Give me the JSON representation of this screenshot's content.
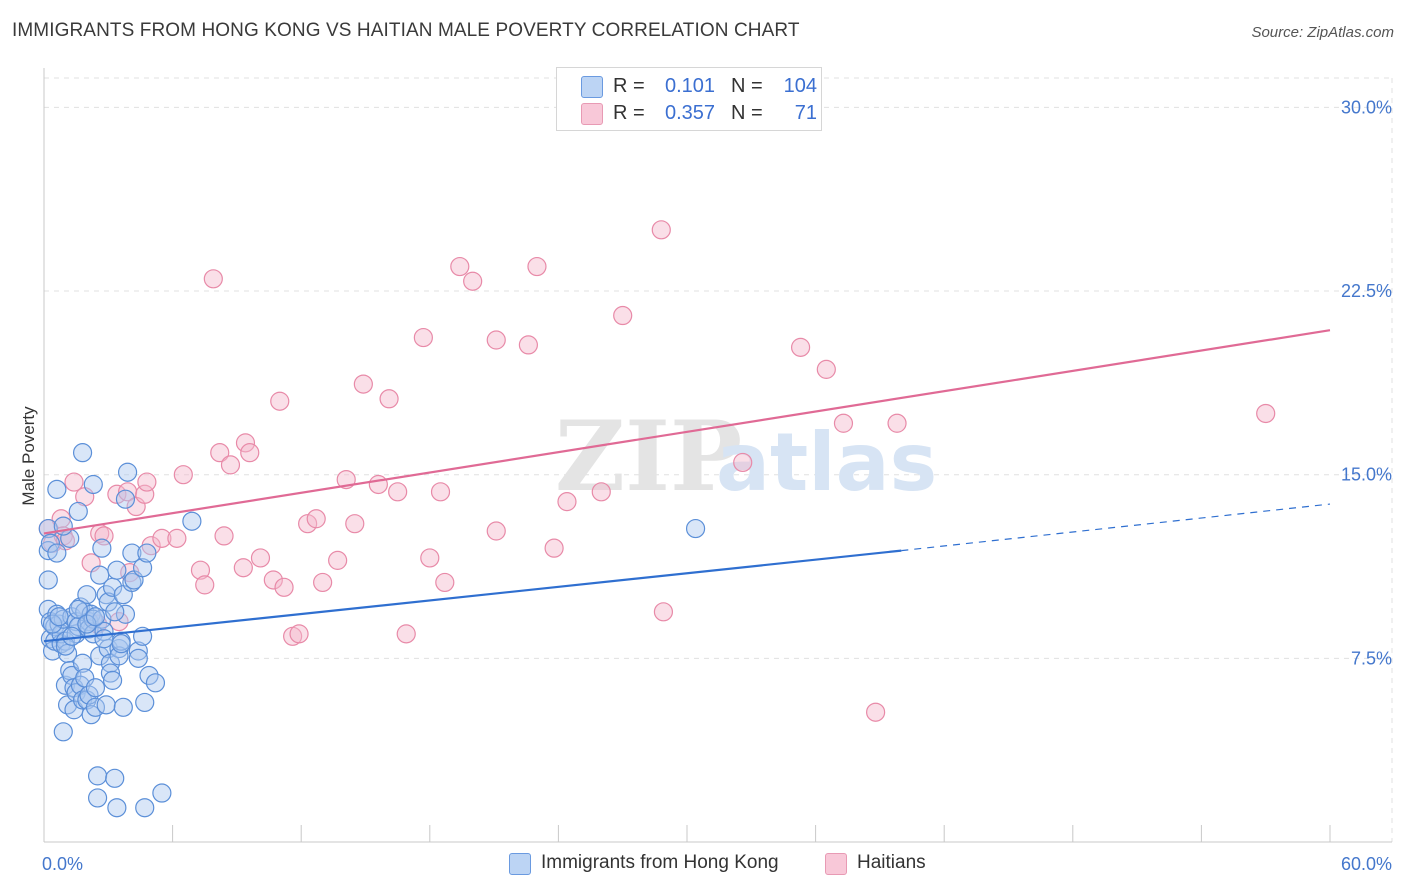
{
  "title": "IMMIGRANTS FROM HONG KONG VS HAITIAN MALE POVERTY CORRELATION CHART",
  "source": "Source: ZipAtlas.com",
  "watermark": {
    "zip": "ZIP",
    "atlas": "atlas"
  },
  "colors": {
    "blue_fill": "#aac8f0",
    "blue_stroke": "#5b8fd8",
    "blue_line": "#2f6fd0",
    "pink_fill": "#f5b8cc",
    "pink_stroke": "#e88aa8",
    "pink_line": "#e06a95",
    "grid": "#e0e0e0",
    "axis_label": "#4477cc"
  },
  "legend": {
    "rows": [
      {
        "r_label": "R =",
        "r_value": "0.101",
        "n_label": "N =",
        "n_value": "104"
      },
      {
        "r_label": "R =",
        "r_value": "0.357",
        "n_label": "N =",
        "n_value": "71"
      }
    ]
  },
  "bottom_legend": {
    "series1": "Immigrants from Hong Kong",
    "series2": "Haitians"
  },
  "chart_data": {
    "type": "scatter",
    "title": "IMMIGRANTS FROM HONG KONG VS HAITIAN MALE POVERTY CORRELATION CHART",
    "xlabel": "",
    "ylabel": "Male Poverty",
    "xlim": [
      0,
      60
    ],
    "ylim": [
      0,
      31.2
    ],
    "x_tick_labels": [
      "0.0%",
      "60.0%"
    ],
    "y_ticks": [
      7.5,
      15.0,
      22.5,
      30.0
    ],
    "y_tick_labels": [
      "7.5%",
      "15.0%",
      "22.5%",
      "30.0%"
    ],
    "grid": true,
    "series": [
      {
        "name": "Immigrants from Hong Kong",
        "R": 0.101,
        "N": 104,
        "trend": {
          "x0": 0,
          "y0": 8.2,
          "x1": 40,
          "y1": 11.9,
          "dashed_to_x": 60,
          "dashed_to_y": 13.8
        },
        "points": [
          [
            0.2,
            12.8
          ],
          [
            0.2,
            11.9
          ],
          [
            0.2,
            10.7
          ],
          [
            0.2,
            9.5
          ],
          [
            0.3,
            9.0
          ],
          [
            0.3,
            8.3
          ],
          [
            0.4,
            7.8
          ],
          [
            0.5,
            8.8
          ],
          [
            0.5,
            8.2
          ],
          [
            0.6,
            9.3
          ],
          [
            0.6,
            14.4
          ],
          [
            0.7,
            8.9
          ],
          [
            0.8,
            8.1
          ],
          [
            0.8,
            8.5
          ],
          [
            0.9,
            9.1
          ],
          [
            0.9,
            4.5
          ],
          [
            1.0,
            8.2
          ],
          [
            1.0,
            6.4
          ],
          [
            1.1,
            7.7
          ],
          [
            1.1,
            5.6
          ],
          [
            1.2,
            12.4
          ],
          [
            1.2,
            7.0
          ],
          [
            1.3,
            6.8
          ],
          [
            1.3,
            9.2
          ],
          [
            1.4,
            5.4
          ],
          [
            1.4,
            6.3
          ],
          [
            1.5,
            8.5
          ],
          [
            1.5,
            9.0
          ],
          [
            1.5,
            6.1
          ],
          [
            1.6,
            13.5
          ],
          [
            1.6,
            8.8
          ],
          [
            1.7,
            9.6
          ],
          [
            1.7,
            6.4
          ],
          [
            1.8,
            15.9
          ],
          [
            1.8,
            5.8
          ],
          [
            1.8,
            7.3
          ],
          [
            1.9,
            9.4
          ],
          [
            1.9,
            6.7
          ],
          [
            2.0,
            10.1
          ],
          [
            2.0,
            5.8
          ],
          [
            2.1,
            9.0
          ],
          [
            2.1,
            8.7
          ],
          [
            2.1,
            6.0
          ],
          [
            2.2,
            9.3
          ],
          [
            2.2,
            5.2
          ],
          [
            2.3,
            14.6
          ],
          [
            2.3,
            9.1
          ],
          [
            2.3,
            8.5
          ],
          [
            2.4,
            6.3
          ],
          [
            2.4,
            5.5
          ],
          [
            2.5,
            1.8
          ],
          [
            2.5,
            2.7
          ],
          [
            2.6,
            10.9
          ],
          [
            2.6,
            7.6
          ],
          [
            2.7,
            12.0
          ],
          [
            2.7,
            9.1
          ],
          [
            2.8,
            8.6
          ],
          [
            2.9,
            10.1
          ],
          [
            2.9,
            5.6
          ],
          [
            3.0,
            9.8
          ],
          [
            3.0,
            7.9
          ],
          [
            3.1,
            7.3
          ],
          [
            3.1,
            6.9
          ],
          [
            3.2,
            6.6
          ],
          [
            3.2,
            10.4
          ],
          [
            3.3,
            2.6
          ],
          [
            3.4,
            11.1
          ],
          [
            3.4,
            1.4
          ],
          [
            3.5,
            7.9
          ],
          [
            3.5,
            7.6
          ],
          [
            3.6,
            8.2
          ],
          [
            3.6,
            8.1
          ],
          [
            3.7,
            5.5
          ],
          [
            3.7,
            10.1
          ],
          [
            3.8,
            9.3
          ],
          [
            3.8,
            14.0
          ],
          [
            3.9,
            15.1
          ],
          [
            4.1,
            10.6
          ],
          [
            4.1,
            11.8
          ],
          [
            4.2,
            10.7
          ],
          [
            4.4,
            7.8
          ],
          [
            4.4,
            7.5
          ],
          [
            4.6,
            11.2
          ],
          [
            4.6,
            8.4
          ],
          [
            4.7,
            5.7
          ],
          [
            4.7,
            1.4
          ],
          [
            4.8,
            11.8
          ],
          [
            4.9,
            6.8
          ],
          [
            5.2,
            6.5
          ],
          [
            5.5,
            2.0
          ],
          [
            6.9,
            13.1
          ],
          [
            30.4,
            12.8
          ],
          [
            0.4,
            8.9
          ],
          [
            0.7,
            9.2
          ],
          [
            1.0,
            8.0
          ],
          [
            1.3,
            8.4
          ],
          [
            1.6,
            9.5
          ],
          [
            2.0,
            8.9
          ],
          [
            2.4,
            9.2
          ],
          [
            2.8,
            8.3
          ],
          [
            3.3,
            9.4
          ],
          [
            0.3,
            12.2
          ],
          [
            0.6,
            11.8
          ],
          [
            0.9,
            12.9
          ]
        ]
      },
      {
        "name": "Haitians",
        "R": 0.357,
        "N": 71,
        "trend": {
          "x0": 0,
          "y0": 12.6,
          "x1": 60,
          "y1": 20.9
        },
        "points": [
          [
            0.2,
            12.8
          ],
          [
            0.4,
            12.2
          ],
          [
            0.8,
            13.2
          ],
          [
            0.9,
            12.5
          ],
          [
            1.0,
            12.3
          ],
          [
            1.4,
            14.7
          ],
          [
            1.9,
            14.1
          ],
          [
            2.2,
            11.4
          ],
          [
            2.5,
            8.9
          ],
          [
            2.6,
            12.6
          ],
          [
            2.8,
            12.5
          ],
          [
            3.4,
            14.2
          ],
          [
            3.5,
            9.0
          ],
          [
            3.9,
            14.3
          ],
          [
            4.0,
            11.0
          ],
          [
            4.3,
            13.7
          ],
          [
            4.7,
            14.2
          ],
          [
            4.8,
            14.7
          ],
          [
            5.0,
            12.1
          ],
          [
            5.5,
            12.4
          ],
          [
            6.2,
            12.4
          ],
          [
            6.5,
            15.0
          ],
          [
            7.3,
            11.1
          ],
          [
            7.5,
            10.5
          ],
          [
            7.9,
            23.0
          ],
          [
            8.2,
            15.9
          ],
          [
            8.4,
            12.5
          ],
          [
            8.7,
            15.4
          ],
          [
            9.3,
            11.2
          ],
          [
            9.4,
            16.3
          ],
          [
            9.6,
            15.9
          ],
          [
            10.1,
            11.6
          ],
          [
            10.7,
            10.7
          ],
          [
            11.0,
            18.0
          ],
          [
            11.2,
            10.4
          ],
          [
            11.6,
            8.4
          ],
          [
            11.9,
            8.5
          ],
          [
            12.3,
            13.0
          ],
          [
            12.7,
            13.2
          ],
          [
            13.0,
            10.6
          ],
          [
            13.7,
            11.5
          ],
          [
            14.1,
            14.8
          ],
          [
            14.5,
            13.0
          ],
          [
            14.9,
            18.7
          ],
          [
            15.6,
            14.6
          ],
          [
            16.1,
            18.1
          ],
          [
            16.5,
            14.3
          ],
          [
            16.9,
            8.5
          ],
          [
            17.7,
            20.6
          ],
          [
            18.0,
            11.6
          ],
          [
            18.5,
            14.3
          ],
          [
            18.7,
            10.6
          ],
          [
            19.4,
            23.5
          ],
          [
            20.0,
            22.9
          ],
          [
            21.1,
            20.5
          ],
          [
            21.1,
            12.7
          ],
          [
            22.6,
            20.3
          ],
          [
            23.0,
            23.5
          ],
          [
            23.8,
            12.0
          ],
          [
            24.4,
            13.9
          ],
          [
            26.0,
            14.3
          ],
          [
            27.0,
            21.5
          ],
          [
            28.9,
            9.4
          ],
          [
            28.8,
            25.0
          ],
          [
            32.6,
            15.5
          ],
          [
            35.3,
            20.2
          ],
          [
            36.5,
            19.3
          ],
          [
            37.3,
            17.1
          ],
          [
            38.8,
            5.3
          ],
          [
            39.8,
            17.1
          ],
          [
            57.0,
            17.5
          ]
        ]
      }
    ]
  }
}
